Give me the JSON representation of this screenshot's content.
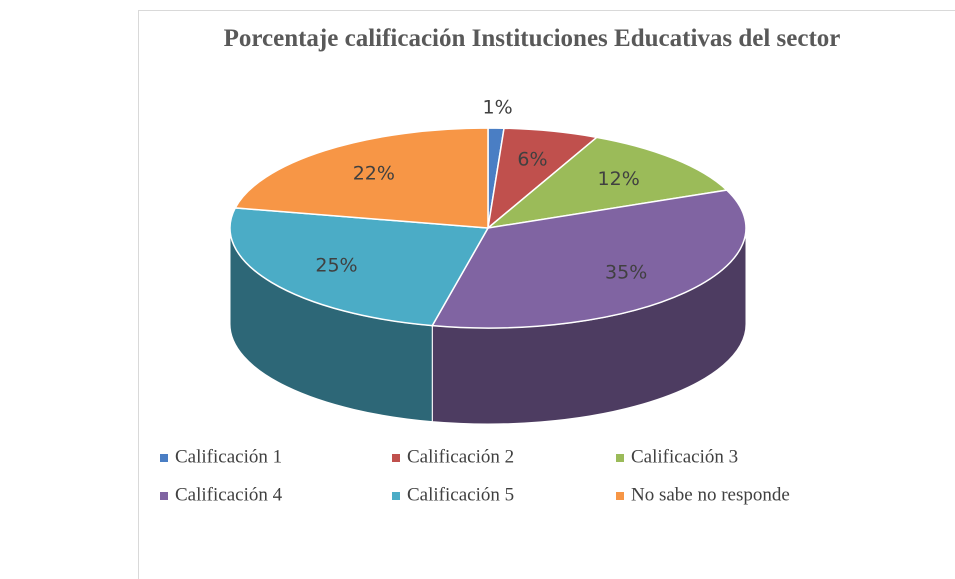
{
  "chart_data": {
    "type": "pie",
    "title": "Porcentaje calificación Instituciones Educativas del sector",
    "categories": [
      "Calificación 1",
      "Calificación 2",
      "Calificación 3",
      "Calificación 4",
      "Calificación 5",
      "No sabe no responde"
    ],
    "values": [
      1,
      6,
      12,
      35,
      25,
      22
    ],
    "value_labels": [
      "1%",
      "6%",
      "12%",
      "35%",
      "25%",
      "22%"
    ],
    "colors": [
      "#4a7ec4",
      "#c0504d",
      "#9bbb59",
      "#8064a2",
      "#4bacc6",
      "#f79646"
    ],
    "legend": "bottom"
  }
}
